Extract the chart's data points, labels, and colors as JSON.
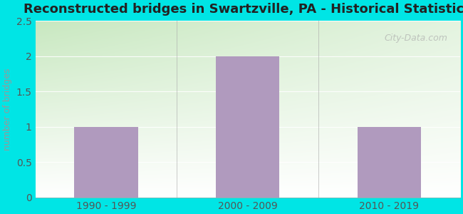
{
  "title": "Reconstructed bridges in Swartzville, PA - Historical Statistics",
  "categories": [
    "1990 - 1999",
    "2000 - 2009",
    "2010 - 2019"
  ],
  "values": [
    1,
    2,
    1
  ],
  "bar_color": "#b09abe",
  "ylabel": "number of bridges",
  "ylim": [
    0,
    2.5
  ],
  "yticks": [
    0,
    0.5,
    1,
    1.5,
    2,
    2.5
  ],
  "ytick_labels": [
    "0",
    "0.5",
    "1",
    "1.5",
    "2",
    "2.5"
  ],
  "background_outer": "#00e5e5",
  "background_inner_left": "#c8e8c0",
  "background_inner_right": "#f0f8ee",
  "background_top": "#e0f0d8",
  "background_bottom": "#f8fff8",
  "title_fontsize": 13,
  "ylabel_fontsize": 9,
  "tick_fontsize": 10,
  "watermark_text": "City-Data.com",
  "bar_width": 0.45,
  "grid_color": "#cccccc",
  "ylabel_color": "#888888",
  "tick_color": "#555555"
}
